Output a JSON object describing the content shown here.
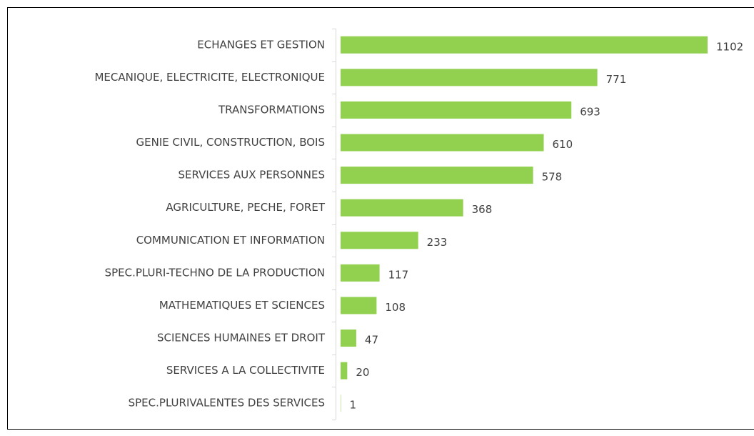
{
  "chart_data": {
    "type": "bar",
    "orientation": "horizontal",
    "categories": [
      "ECHANGES ET GESTION",
      "MECANIQUE, ELECTRICITE, ELECTRONIQUE",
      "TRANSFORMATIONS",
      "GENIE CIVIL, CONSTRUCTION, BOIS",
      "SERVICES AUX PERSONNES",
      "AGRICULTURE, PECHE, FORET",
      "COMMUNICATION ET INFORMATION",
      "SPEC.PLURI-TECHNO DE LA PRODUCTION",
      "MATHEMATIQUES ET SCIENCES",
      "SCIENCES HUMAINES ET DROIT",
      "SERVICES A LA COLLECTIVITE",
      "SPEC.PLURIVALENTES DES SERVICES"
    ],
    "values": [
      1102,
      771,
      693,
      610,
      578,
      368,
      233,
      117,
      108,
      47,
      20,
      1
    ],
    "color": "#92d050"
  }
}
